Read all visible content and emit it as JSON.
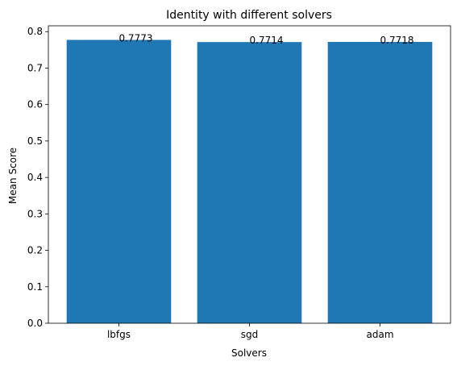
{
  "chart_data": {
    "type": "bar",
    "title": "Identity with different solvers",
    "xlabel": "Solvers",
    "ylabel": "Mean Score",
    "categories": [
      "lbfgs",
      "sgd",
      "adam"
    ],
    "values": [
      0.7773,
      0.7714,
      0.7718
    ],
    "data_labels": [
      "0.7773",
      "0.7714",
      "0.7718"
    ],
    "ylim": [
      0,
      0.816
    ],
    "yticks": [
      0.0,
      0.1,
      0.2,
      0.3,
      0.4,
      0.5,
      0.6,
      0.7,
      0.8
    ],
    "ytick_labels": [
      "0.0",
      "0.1",
      "0.2",
      "0.3",
      "0.4",
      "0.5",
      "0.6",
      "0.7",
      "0.8"
    ],
    "grid": false,
    "bar_color": "#1f77b4"
  }
}
